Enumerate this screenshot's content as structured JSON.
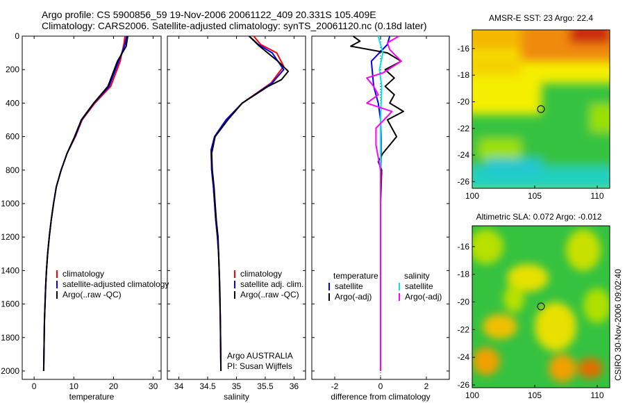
{
  "title_line1": "Argo profile: CS 5900856_59 19-Nov-2006 20061122_409 20.331S 105.409E",
  "title_line2": "Climatology: CARS2006. Satellite-adjusted climatology: synTS_20061120.nc (0.18d later)",
  "side_label": "CSIRO 30-Nov-2006 09:02:40",
  "chart_data": [
    {
      "type": "line",
      "id": "temperature-profile",
      "xlabel": "temperature",
      "ylabel": "",
      "xlim": [
        -3,
        32
      ],
      "ylim": [
        2050,
        0
      ],
      "xticks": [
        0,
        10,
        20,
        30
      ],
      "yticks": [
        0,
        200,
        400,
        600,
        800,
        1000,
        1200,
        1400,
        1600,
        1800,
        2000
      ],
      "legend": [
        "climatology",
        "satellite-adjusted climatology",
        "Argo(..raw -QC)"
      ],
      "series": [
        {
          "name": "climatology",
          "color": "#ff0000",
          "x": [
            22.9,
            22.6,
            21.7,
            19.3,
            15.3,
            12.1,
            10.4,
            8.3,
            6.8,
            5.6,
            4.9,
            4.3,
            3.8,
            3.4,
            3.1,
            2.9,
            2.6,
            2.4
          ],
          "y": [
            0,
            50,
            150,
            300,
            400,
            500,
            600,
            700,
            800,
            900,
            1000,
            1100,
            1200,
            1300,
            1400,
            1500,
            1700,
            2000
          ]
        },
        {
          "name": "satellite-adjusted climatology",
          "color": "#0000ff",
          "x": [
            23.3,
            22.9,
            21.3,
            18.9,
            15.1,
            12.0,
            10.3,
            8.3,
            6.8,
            5.6,
            4.9,
            4.3,
            3.8,
            3.4,
            3.1,
            2.9,
            2.6,
            2.4
          ],
          "y": [
            0,
            50,
            150,
            300,
            400,
            500,
            600,
            700,
            800,
            900,
            1000,
            1100,
            1200,
            1300,
            1400,
            1500,
            1700,
            2000
          ]
        },
        {
          "name": "Argo(..raw -QC)",
          "color": "#000000",
          "x": [
            23.6,
            23.2,
            21.0,
            19.4,
            18.6,
            15.0,
            11.9,
            10.2,
            8.3,
            6.8,
            5.6,
            4.9,
            4.3,
            3.8,
            3.4,
            3.1,
            2.9,
            2.6,
            2.4
          ],
          "y": [
            0,
            60,
            150,
            250,
            300,
            400,
            500,
            600,
            700,
            800,
            900,
            1000,
            1100,
            1200,
            1300,
            1400,
            1500,
            1700,
            2000
          ]
        }
      ]
    },
    {
      "type": "line",
      "id": "salinity-profile",
      "xlabel": "salinity",
      "ylabel": "",
      "xlim": [
        33.8,
        36.2
      ],
      "ylim": [
        2050,
        0
      ],
      "xticks": [
        34,
        34.5,
        35,
        35.5,
        36
      ],
      "legend": [
        "climatology",
        "satellite adj. clim.",
        "Argo(..raw -QC)"
      ],
      "annotation": [
        "Argo AUSTRALIA",
        "PI: Susan Wijffels"
      ],
      "series": [
        {
          "name": "climatology",
          "color": "#ff0000",
          "x": [
            35.3,
            35.42,
            35.7,
            35.82,
            35.6,
            35.1,
            34.82,
            34.62,
            34.56,
            34.57,
            34.6,
            34.62,
            34.64,
            34.67,
            34.69,
            34.71,
            34.72,
            34.73
          ],
          "y": [
            0,
            50,
            100,
            180,
            280,
            400,
            500,
            600,
            680,
            800,
            900,
            1000,
            1100,
            1200,
            1300,
            1500,
            1700,
            2000
          ]
        },
        {
          "name": "satellite adj. clim.",
          "color": "#0000ff",
          "x": [
            35.22,
            35.38,
            35.62,
            35.82,
            35.62,
            35.1,
            34.82,
            34.62,
            34.56,
            34.57,
            34.6,
            34.62,
            34.64,
            34.67,
            34.69,
            34.71,
            34.72,
            34.73
          ],
          "y": [
            0,
            50,
            100,
            200,
            280,
            400,
            500,
            600,
            680,
            800,
            900,
            1000,
            1100,
            1200,
            1300,
            1500,
            1700,
            2000
          ]
        },
        {
          "name": "Argo(..raw -QC)",
          "color": "#000000",
          "x": [
            35.22,
            35.4,
            35.72,
            35.9,
            35.78,
            35.55,
            35.1,
            34.85,
            34.63,
            34.57,
            34.58,
            34.61,
            34.63,
            34.65,
            34.68,
            34.7,
            34.72,
            34.73
          ],
          "y": [
            0,
            60,
            150,
            210,
            260,
            300,
            400,
            500,
            600,
            700,
            800,
            900,
            1000,
            1100,
            1200,
            1400,
            1700,
            2000
          ]
        }
      ]
    },
    {
      "type": "line",
      "id": "difference-profile",
      "xlabel": "difference from climatology",
      "ylabel": "",
      "xlim": [
        -3,
        3
      ],
      "ylim": [
        2050,
        0
      ],
      "xticks": [
        -2,
        0,
        2
      ],
      "legend_left_title": "temperature",
      "legend_right_title": "salinity",
      "legend": [
        "satellite",
        "Argo(-adj)",
        "satellite",
        "Argo(-adj)"
      ],
      "series": [
        {
          "name": "temperature satellite",
          "color": "#0000ff",
          "x": [
            0.4,
            0.3,
            -0.4,
            -0.3,
            -0.1,
            0,
            0.02,
            0.02,
            0.01,
            0,
            0,
            0,
            0,
            0
          ],
          "y": [
            0,
            50,
            150,
            300,
            400,
            500,
            600,
            700,
            800,
            1000,
            1200,
            1500,
            1800,
            2000
          ]
        },
        {
          "name": "temperature Argo(-adj)",
          "color": "#000000",
          "x": [
            -1.2,
            -0.9,
            -1.3,
            0.3,
            0.9,
            0.2,
            0.6,
            0.2,
            0.6,
            0.4,
            1.0,
            0.3,
            0.7,
            0.1,
            -0.1,
            0.05,
            0,
            0,
            0,
            0
          ],
          "y": [
            0,
            30,
            60,
            100,
            150,
            200,
            250,
            300,
            350,
            400,
            450,
            500,
            600,
            700,
            750,
            800,
            1000,
            1300,
            1700,
            2000
          ]
        },
        {
          "name": "salinity satellite",
          "color": "#00e5e5",
          "x": [
            -0.1,
            0.1,
            -0.05,
            0.05,
            0,
            0,
            0,
            0,
            0
          ],
          "y": [
            0,
            100,
            200,
            300,
            500,
            800,
            1200,
            1600,
            2000
          ]
        },
        {
          "name": "salinity Argo(-adj)",
          "color": "#ff00ff",
          "x": [
            0.8,
            0.3,
            0.4,
            0.9,
            0.1,
            -0.6,
            -0.3,
            -0.1,
            -0.6,
            0.5,
            -0.2,
            -0.2,
            0,
            0,
            0,
            0
          ],
          "y": [
            0,
            40,
            80,
            150,
            220,
            250,
            300,
            350,
            400,
            450,
            550,
            650,
            800,
            1100,
            1500,
            2000
          ]
        }
      ]
    },
    {
      "type": "heatmap",
      "id": "sst-map",
      "title": "AMSR-E SST: 23 Argo: 22.4",
      "xlim": [
        100,
        111
      ],
      "ylim": [
        -26.5,
        -14.6
      ],
      "xticks": [
        100,
        105,
        110
      ],
      "yticks": [
        -16,
        -18,
        -20,
        -22,
        -24,
        -26
      ],
      "marker": {
        "lon": 105.409,
        "lat": -20.331
      }
    },
    {
      "type": "heatmap",
      "id": "sla-map",
      "title": "Altimetric SLA: 0.072 Argo: -0.012",
      "xlim": [
        100,
        111
      ],
      "ylim": [
        -26.2,
        -14.5
      ],
      "xticks": [
        100,
        105,
        110
      ],
      "yticks": [
        -16,
        -18,
        -20,
        -22,
        -24,
        -26
      ],
      "marker": {
        "lon": 105.409,
        "lat": -20.331
      }
    }
  ]
}
